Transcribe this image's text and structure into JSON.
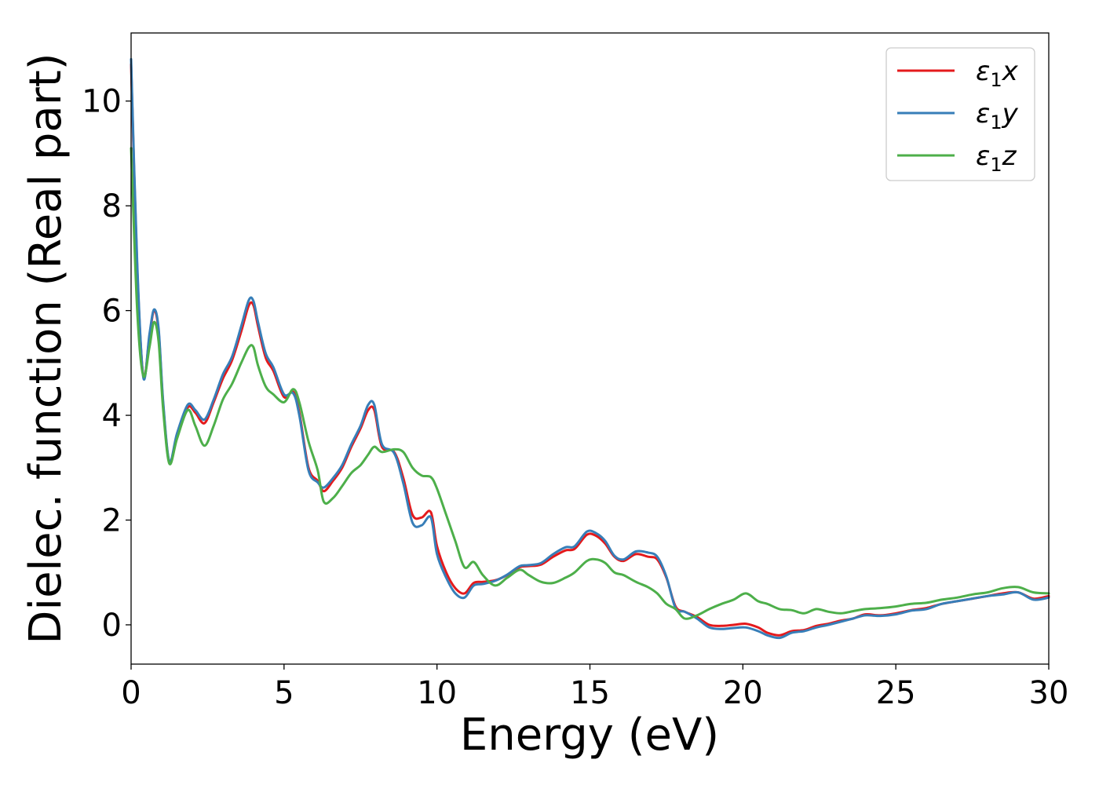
{
  "chart_data": {
    "type": "line",
    "title": "",
    "xlabel": "Energy (eV)",
    "ylabel": "Dielec. function (Real part)",
    "xlim": [
      0,
      30
    ],
    "ylim": [
      -0.75,
      11.3
    ],
    "xticks": [
      0,
      5,
      10,
      15,
      20,
      25,
      30
    ],
    "yticks": [
      0,
      2,
      4,
      6,
      8,
      10
    ],
    "grid": false,
    "legend_position": "top-right",
    "series": [
      {
        "name": "ε₁x",
        "legend": {
          "base": "ε",
          "sub": "1",
          "var": "x"
        },
        "color": "#e41a1c",
        "x": [
          0,
          0.2,
          0.4,
          0.6,
          0.75,
          0.9,
          1.05,
          1.25,
          1.5,
          1.85,
          2.1,
          2.4,
          2.7,
          3.0,
          3.3,
          3.6,
          3.85,
          4.0,
          4.15,
          4.4,
          4.65,
          5.0,
          5.3,
          5.5,
          5.8,
          6.1,
          6.3,
          6.6,
          6.9,
          7.2,
          7.5,
          7.75,
          7.95,
          8.2,
          8.6,
          8.9,
          9.2,
          9.5,
          9.8,
          10.0,
          10.3,
          10.6,
          10.9,
          11.2,
          11.5,
          11.9,
          12.3,
          12.7,
          13.0,
          13.4,
          13.8,
          14.2,
          14.5,
          14.9,
          15.2,
          15.5,
          15.8,
          16.1,
          16.5,
          16.9,
          17.2,
          17.5,
          17.8,
          18.1,
          18.5,
          18.9,
          19.3,
          19.7,
          20.1,
          20.5,
          20.8,
          21.2,
          21.6,
          22.0,
          22.4,
          22.8,
          23.2,
          23.6,
          24.0,
          24.5,
          25.0,
          25.5,
          26.0,
          26.5,
          27.0,
          27.5,
          28.0,
          28.5,
          29.0,
          29.5,
          30.0
        ],
        "y": [
          10.7,
          6.8,
          4.75,
          5.5,
          6.0,
          5.6,
          4.2,
          3.1,
          3.6,
          4.15,
          4.05,
          3.85,
          4.25,
          4.7,
          5.05,
          5.6,
          6.1,
          6.1,
          5.7,
          5.1,
          4.85,
          4.35,
          4.45,
          4.05,
          3.0,
          2.75,
          2.55,
          2.75,
          3.0,
          3.4,
          3.75,
          4.1,
          4.1,
          3.4,
          3.3,
          2.8,
          2.1,
          2.05,
          2.15,
          1.5,
          1.0,
          0.7,
          0.6,
          0.8,
          0.82,
          0.85,
          0.95,
          1.1,
          1.12,
          1.15,
          1.3,
          1.42,
          1.45,
          1.72,
          1.7,
          1.55,
          1.3,
          1.22,
          1.35,
          1.3,
          1.25,
          0.9,
          0.35,
          0.25,
          0.15,
          0.0,
          -0.02,
          0.0,
          0.02,
          -0.05,
          -0.15,
          -0.2,
          -0.12,
          -0.1,
          -0.02,
          0.02,
          0.08,
          0.12,
          0.2,
          0.18,
          0.22,
          0.28,
          0.32,
          0.4,
          0.45,
          0.5,
          0.55,
          0.6,
          0.62,
          0.5,
          0.55
        ]
      },
      {
        "name": "ε₁y",
        "legend": {
          "base": "ε",
          "sub": "1",
          "var": "y"
        },
        "color": "#377eb8",
        "x": [
          0,
          0.2,
          0.4,
          0.6,
          0.75,
          0.9,
          1.05,
          1.25,
          1.5,
          1.85,
          2.1,
          2.4,
          2.7,
          3.0,
          3.3,
          3.6,
          3.85,
          4.0,
          4.15,
          4.4,
          4.65,
          5.0,
          5.3,
          5.5,
          5.8,
          6.1,
          6.3,
          6.6,
          6.9,
          7.2,
          7.5,
          7.75,
          7.95,
          8.2,
          8.6,
          8.9,
          9.2,
          9.5,
          9.8,
          10.0,
          10.3,
          10.6,
          10.9,
          11.2,
          11.5,
          11.9,
          12.3,
          12.7,
          13.0,
          13.4,
          13.8,
          14.2,
          14.5,
          14.9,
          15.2,
          15.5,
          15.8,
          16.1,
          16.5,
          16.9,
          17.2,
          17.5,
          17.8,
          18.1,
          18.5,
          18.9,
          19.3,
          19.7,
          20.1,
          20.5,
          20.8,
          21.2,
          21.6,
          22.0,
          22.4,
          22.8,
          23.2,
          23.6,
          24.0,
          24.5,
          25.0,
          25.5,
          26.0,
          26.5,
          27.0,
          27.5,
          28.0,
          28.5,
          29.0,
          29.5,
          30.0
        ],
        "y": [
          10.8,
          6.9,
          4.72,
          5.55,
          6.02,
          5.65,
          4.25,
          3.12,
          3.65,
          4.2,
          4.1,
          3.92,
          4.3,
          4.78,
          5.12,
          5.7,
          6.2,
          6.18,
          5.78,
          5.18,
          4.92,
          4.4,
          4.42,
          4.0,
          2.95,
          2.72,
          2.62,
          2.8,
          3.05,
          3.45,
          3.8,
          4.2,
          4.2,
          3.45,
          3.28,
          2.7,
          1.95,
          1.9,
          2.05,
          1.35,
          0.9,
          0.6,
          0.52,
          0.75,
          0.78,
          0.84,
          0.96,
          1.12,
          1.14,
          1.18,
          1.35,
          1.48,
          1.5,
          1.78,
          1.75,
          1.6,
          1.32,
          1.25,
          1.4,
          1.38,
          1.3,
          0.92,
          0.32,
          0.25,
          0.12,
          -0.05,
          -0.08,
          -0.06,
          -0.05,
          -0.12,
          -0.2,
          -0.25,
          -0.15,
          -0.12,
          -0.05,
          0.0,
          0.06,
          0.12,
          0.18,
          0.17,
          0.2,
          0.27,
          0.3,
          0.4,
          0.45,
          0.5,
          0.55,
          0.58,
          0.62,
          0.48,
          0.52
        ]
      },
      {
        "name": "ε₁z",
        "legend": {
          "base": "ε",
          "sub": "1",
          "var": "z"
        },
        "color": "#4daf4a",
        "x": [
          0,
          0.2,
          0.4,
          0.6,
          0.75,
          0.9,
          1.05,
          1.25,
          1.5,
          1.85,
          2.1,
          2.4,
          2.7,
          3.0,
          3.3,
          3.6,
          3.85,
          4.0,
          4.15,
          4.4,
          4.65,
          5.0,
          5.3,
          5.5,
          5.8,
          6.1,
          6.3,
          6.6,
          6.9,
          7.2,
          7.5,
          7.75,
          7.95,
          8.2,
          8.6,
          8.9,
          9.2,
          9.5,
          9.8,
          10.0,
          10.3,
          10.6,
          10.9,
          11.2,
          11.5,
          11.9,
          12.3,
          12.7,
          13.0,
          13.4,
          13.8,
          14.2,
          14.5,
          14.9,
          15.2,
          15.5,
          15.8,
          16.1,
          16.5,
          16.9,
          17.2,
          17.5,
          17.8,
          18.1,
          18.5,
          18.9,
          19.3,
          19.7,
          20.1,
          20.5,
          20.8,
          21.2,
          21.6,
          22.0,
          22.4,
          22.8,
          23.2,
          23.6,
          24.0,
          24.5,
          25.0,
          25.5,
          26.0,
          26.5,
          27.0,
          27.5,
          28.0,
          28.5,
          29.0,
          29.5,
          30.0
        ],
        "y": [
          9.1,
          6.0,
          4.75,
          5.3,
          5.78,
          5.4,
          4.1,
          3.08,
          3.55,
          4.1,
          3.8,
          3.42,
          3.8,
          4.3,
          4.6,
          5.0,
          5.3,
          5.3,
          4.95,
          4.55,
          4.4,
          4.25,
          4.5,
          4.25,
          3.5,
          2.95,
          2.35,
          2.42,
          2.65,
          2.9,
          3.05,
          3.25,
          3.4,
          3.3,
          3.35,
          3.3,
          3.0,
          2.85,
          2.82,
          2.6,
          2.1,
          1.6,
          1.1,
          1.2,
          0.95,
          0.75,
          0.9,
          1.05,
          0.95,
          0.82,
          0.8,
          0.9,
          1.0,
          1.22,
          1.25,
          1.18,
          1.0,
          0.95,
          0.82,
          0.72,
          0.6,
          0.4,
          0.3,
          0.12,
          0.18,
          0.3,
          0.4,
          0.48,
          0.6,
          0.45,
          0.4,
          0.3,
          0.28,
          0.22,
          0.3,
          0.25,
          0.22,
          0.26,
          0.3,
          0.32,
          0.35,
          0.4,
          0.42,
          0.48,
          0.52,
          0.58,
          0.62,
          0.7,
          0.72,
          0.62,
          0.6
        ]
      }
    ]
  }
}
